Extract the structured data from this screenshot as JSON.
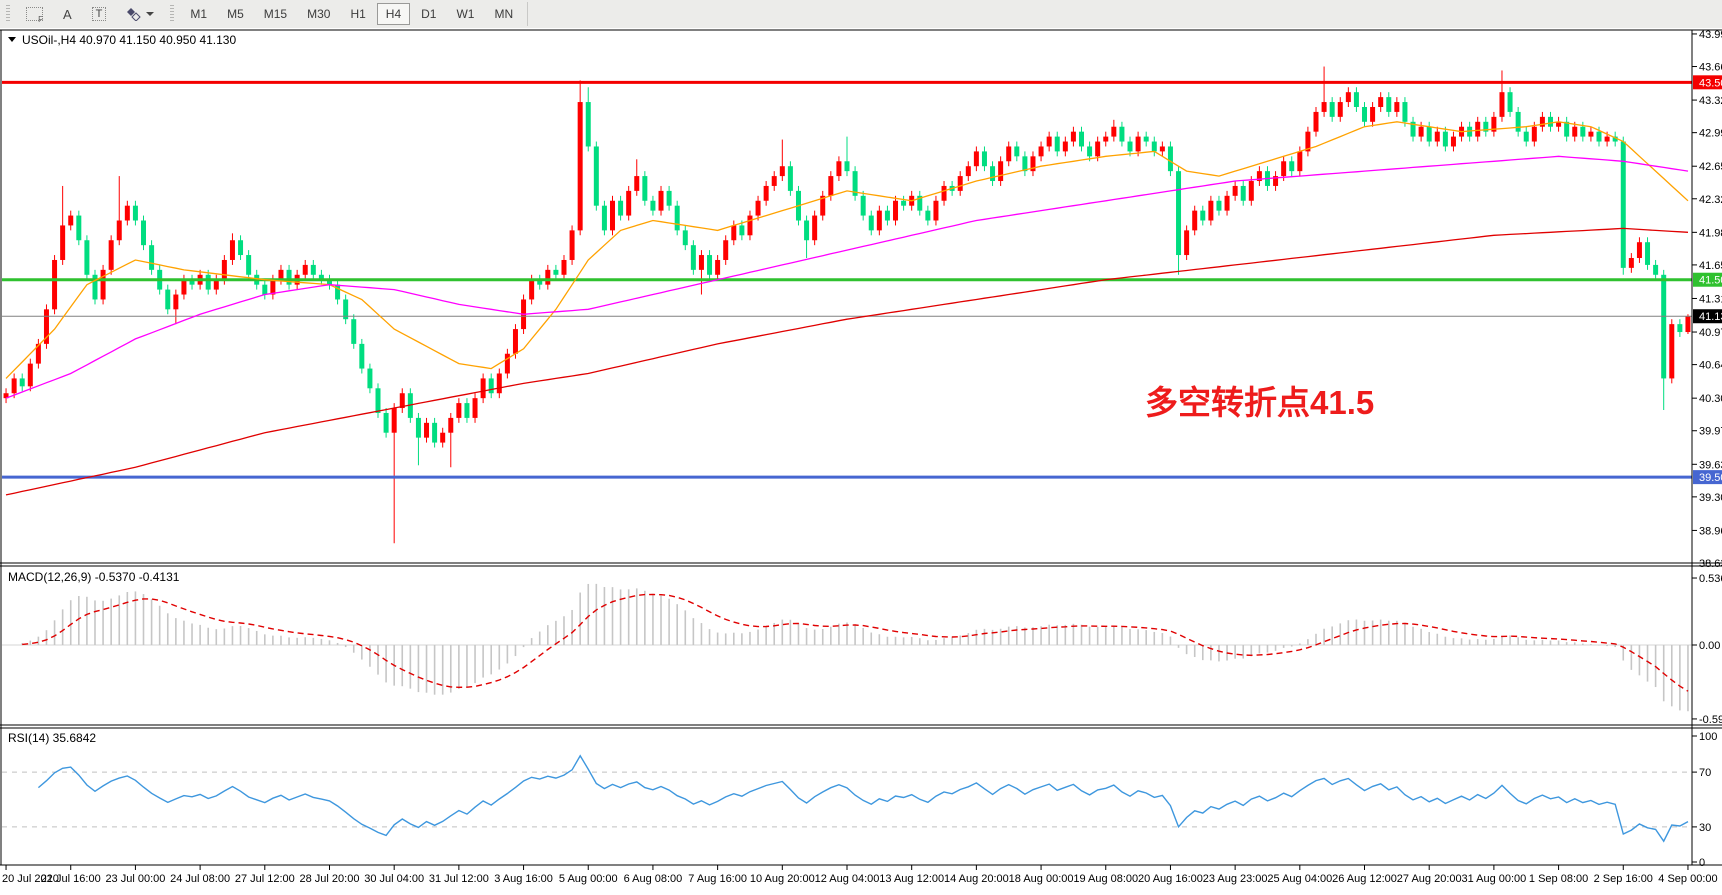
{
  "toolbar": {
    "tools": [
      {
        "id": "fibonacci-tool",
        "label": "F"
      },
      {
        "id": "text-label-tool",
        "label": "A"
      },
      {
        "id": "text-box-tool",
        "label": "T"
      },
      {
        "id": "arrow-objects-tool",
        "label": ""
      }
    ],
    "timeframes": [
      "M1",
      "M5",
      "M15",
      "M30",
      "H1",
      "H4",
      "D1",
      "W1",
      "MN"
    ],
    "active_timeframe": "H4"
  },
  "header": {
    "title": "USOil-,H4  40.970 41.150 40.950 41.130"
  },
  "annotation": {
    "text": "多空转折点41.5",
    "color": "#ee1c1c"
  },
  "indicators": {
    "macd": {
      "label": "MACD(12,26,9) -0.5370 -0.4131",
      "fast": 12,
      "slow": 26,
      "signal": 9,
      "value": -0.537,
      "signal_value": -0.4131,
      "axis_ticks": [
        "0.5367",
        "0.00",
        "-0.5924"
      ]
    },
    "rsi": {
      "label": "RSI(14) 35.6842",
      "period": 14,
      "value": 35.6842,
      "axis_ticks": [
        "100",
        "70",
        "30",
        "0"
      ],
      "levels": [
        30,
        70
      ]
    }
  },
  "chart_data": {
    "type": "candlestick",
    "symbol": "USOil-",
    "timeframe": "H4",
    "current_bar": {
      "open": 40.97,
      "high": 41.15,
      "low": 40.95,
      "close": 41.13
    },
    "y_range": {
      "max": 44.03,
      "min": 38.63
    },
    "price_ticks": [
      "43.990",
      "43.660",
      "43.320",
      "42.990",
      "42.650",
      "42.320",
      "41.980",
      "41.650",
      "41.310",
      "40.970",
      "40.640",
      "40.300",
      "39.970",
      "39.630",
      "39.300",
      "38.960",
      "38.630"
    ],
    "hlines": [
      {
        "price": 43.5,
        "label": "43.500",
        "color": "#f40000",
        "width": 3
      },
      {
        "price": 41.5,
        "label": "41.500",
        "color": "#2fc12f",
        "width": 3
      },
      {
        "price": 41.13,
        "label": "41.130",
        "color": "#808080",
        "badge_bg": "#000000",
        "width": 1
      },
      {
        "price": 39.5,
        "label": "39.500",
        "color": "#4666d1",
        "width": 3
      }
    ],
    "label_every": 8,
    "time_labels": [
      "20 Jul 2020",
      "21 Jul 16:00",
      "23 Jul 00:00",
      "24 Jul 08:00",
      "27 Jul 12:00",
      "28 Jul 20:00",
      "30 Jul 04:00",
      "31 Jul 12:00",
      "3 Aug 16:00",
      "5 Aug 00:00",
      "6 Aug 08:00",
      "7 Aug 16:00",
      "10 Aug 20:00",
      "12 Aug 04:00",
      "13 Aug 12:00",
      "14 Aug 20:00",
      "18 Aug 00:00",
      "19 Aug 08:00",
      "20 Aug 16:00",
      "23 Aug 23:00",
      "25 Aug 04:00",
      "26 Aug 12:00",
      "27 Aug 20:00",
      "31 Aug 00:00",
      "1 Sep 08:00",
      "2 Sep 16:00",
      "4 Sep 00:00"
    ],
    "first_open": 40.3,
    "default_wick": 0.05,
    "closes": [
      40.35,
      40.5,
      40.42,
      40.65,
      40.85,
      41.2,
      41.7,
      42.05,
      42.15,
      41.9,
      41.55,
      41.3,
      41.6,
      41.9,
      42.1,
      42.25,
      42.1,
      41.85,
      41.6,
      41.4,
      41.2,
      41.35,
      41.5,
      41.45,
      41.55,
      41.4,
      41.5,
      41.7,
      41.9,
      41.75,
      41.55,
      41.45,
      41.35,
      41.5,
      41.6,
      41.45,
      41.55,
      41.65,
      41.55,
      41.5,
      41.45,
      41.3,
      41.1,
      40.85,
      40.6,
      40.4,
      40.15,
      39.95,
      40.2,
      40.35,
      40.1,
      39.9,
      40.05,
      39.85,
      39.95,
      40.1,
      40.25,
      40.1,
      40.3,
      40.5,
      40.35,
      40.55,
      40.75,
      41.0,
      41.3,
      41.5,
      41.45,
      41.6,
      41.55,
      41.7,
      42.0,
      43.3,
      42.85,
      42.25,
      42.0,
      42.3,
      42.15,
      42.4,
      42.55,
      42.3,
      42.2,
      42.4,
      42.25,
      42.0,
      41.85,
      41.6,
      41.75,
      41.55,
      41.7,
      41.9,
      42.05,
      41.95,
      42.15,
      42.3,
      42.45,
      42.55,
      42.65,
      42.4,
      42.1,
      41.9,
      42.15,
      42.35,
      42.55,
      42.7,
      42.6,
      42.35,
      42.15,
      42.0,
      42.2,
      42.1,
      42.3,
      42.25,
      42.35,
      42.2,
      42.1,
      42.3,
      42.45,
      42.4,
      42.55,
      42.65,
      42.8,
      42.65,
      42.5,
      42.7,
      42.85,
      42.75,
      42.6,
      42.75,
      42.85,
      42.95,
      42.8,
      42.9,
      43.0,
      42.85,
      42.75,
      42.9,
      42.95,
      43.05,
      42.9,
      42.8,
      42.95,
      42.9,
      42.8,
      42.85,
      42.6,
      41.75,
      42.0,
      42.2,
      42.1,
      42.3,
      42.2,
      42.35,
      42.45,
      42.3,
      42.5,
      42.6,
      42.45,
      42.55,
      42.7,
      42.6,
      42.8,
      43.0,
      43.2,
      43.3,
      43.15,
      43.3,
      43.4,
      43.25,
      43.1,
      43.25,
      43.35,
      43.2,
      43.3,
      43.1,
      42.95,
      43.05,
      42.9,
      43.0,
      42.85,
      42.95,
      43.05,
      42.95,
      43.1,
      43.0,
      43.15,
      43.4,
      43.2,
      43.0,
      42.9,
      43.05,
      43.15,
      43.05,
      43.1,
      42.95,
      43.05,
      42.95,
      43.0,
      42.9,
      42.95,
      42.9,
      41.62,
      41.72,
      41.88,
      41.65,
      41.55,
      40.5,
      41.05,
      40.97,
      41.13
    ],
    "wicks": [
      [
        7,
        "h",
        42.45
      ],
      [
        14,
        "h",
        42.55
      ],
      [
        21,
        "l",
        41.05
      ],
      [
        28,
        "h",
        41.97
      ],
      [
        48,
        "l",
        38.83
      ],
      [
        51,
        "l",
        39.62
      ],
      [
        55,
        "l",
        39.6
      ],
      [
        71,
        "h",
        43.52
      ],
      [
        72,
        "h",
        43.45
      ],
      [
        78,
        "h",
        42.72
      ],
      [
        86,
        "l",
        41.35
      ],
      [
        96,
        "h",
        42.92
      ],
      [
        99,
        "l",
        41.72
      ],
      [
        104,
        "h",
        42.95
      ],
      [
        137,
        "h",
        43.12
      ],
      [
        145,
        "l",
        41.55
      ],
      [
        163,
        "h",
        43.66
      ],
      [
        185,
        "h",
        43.62
      ],
      [
        200,
        "l",
        41.55
      ],
      [
        205,
        "l",
        40.18
      ],
      [
        208,
        "h",
        41.15
      ],
      [
        208,
        "l",
        40.95
      ]
    ],
    "moving_averages": [
      {
        "name": "ma-fast",
        "color": "#ffa200",
        "points": [
          [
            0,
            40.5
          ],
          [
            6,
            41.0
          ],
          [
            10,
            41.45
          ],
          [
            16,
            41.7
          ],
          [
            22,
            41.6
          ],
          [
            32,
            41.5
          ],
          [
            40,
            41.45
          ],
          [
            44,
            41.3
          ],
          [
            48,
            41.0
          ],
          [
            56,
            40.65
          ],
          [
            60,
            40.6
          ],
          [
            64,
            40.8
          ],
          [
            68,
            41.2
          ],
          [
            72,
            41.7
          ],
          [
            76,
            42.0
          ],
          [
            80,
            42.1
          ],
          [
            88,
            42.0
          ],
          [
            96,
            42.2
          ],
          [
            104,
            42.4
          ],
          [
            112,
            42.3
          ],
          [
            120,
            42.5
          ],
          [
            128,
            42.65
          ],
          [
            136,
            42.75
          ],
          [
            142,
            42.8
          ],
          [
            146,
            42.6
          ],
          [
            150,
            42.55
          ],
          [
            156,
            42.7
          ],
          [
            162,
            42.85
          ],
          [
            168,
            43.05
          ],
          [
            172,
            43.1
          ],
          [
            180,
            43.0
          ],
          [
            188,
            43.05
          ],
          [
            192,
            43.1
          ],
          [
            196,
            43.05
          ],
          [
            200,
            42.9
          ],
          [
            204,
            42.6
          ],
          [
            208,
            42.3
          ]
        ]
      },
      {
        "name": "ma-mid",
        "color": "#ff00ff",
        "points": [
          [
            0,
            40.3
          ],
          [
            8,
            40.55
          ],
          [
            16,
            40.9
          ],
          [
            24,
            41.15
          ],
          [
            32,
            41.35
          ],
          [
            40,
            41.45
          ],
          [
            48,
            41.4
          ],
          [
            56,
            41.25
          ],
          [
            64,
            41.15
          ],
          [
            72,
            41.2
          ],
          [
            80,
            41.35
          ],
          [
            88,
            41.5
          ],
          [
            96,
            41.65
          ],
          [
            104,
            41.8
          ],
          [
            112,
            41.95
          ],
          [
            120,
            42.1
          ],
          [
            128,
            42.2
          ],
          [
            136,
            42.3
          ],
          [
            144,
            42.4
          ],
          [
            152,
            42.5
          ],
          [
            160,
            42.55
          ],
          [
            168,
            42.6
          ],
          [
            176,
            42.65
          ],
          [
            184,
            42.7
          ],
          [
            192,
            42.75
          ],
          [
            200,
            42.7
          ],
          [
            208,
            42.6
          ]
        ]
      },
      {
        "name": "ma-slow",
        "color": "#e00000",
        "points": [
          [
            0,
            39.32
          ],
          [
            16,
            39.6
          ],
          [
            32,
            39.95
          ],
          [
            48,
            40.2
          ],
          [
            64,
            40.45
          ],
          [
            72,
            40.55
          ],
          [
            88,
            40.85
          ],
          [
            104,
            41.1
          ],
          [
            120,
            41.3
          ],
          [
            136,
            41.5
          ],
          [
            152,
            41.65
          ],
          [
            168,
            41.8
          ],
          [
            184,
            41.95
          ],
          [
            200,
            42.02
          ],
          [
            208,
            41.98
          ]
        ]
      }
    ],
    "colors": {
      "up": "#ff0000",
      "down": "#00dd80",
      "macd_hist": "#c6c6c6",
      "macd_signal": "#e00000",
      "rsi": "#3e97de",
      "level": "#c0c0c0"
    }
  }
}
